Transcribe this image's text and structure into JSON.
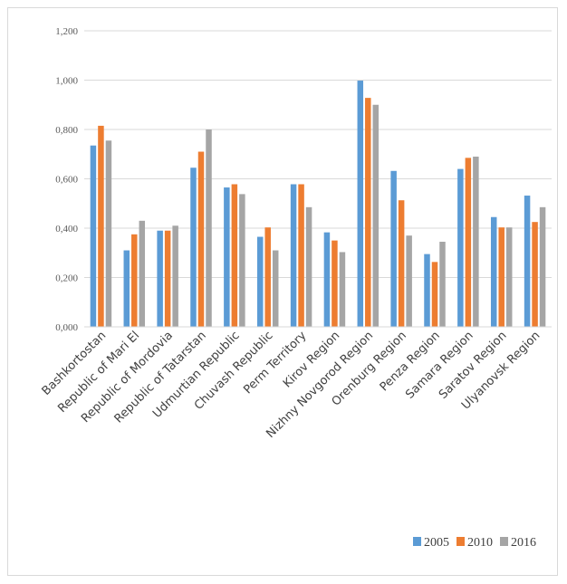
{
  "chart_data": {
    "type": "bar",
    "categories": [
      "Bashkortostan",
      "Republic of Mari El",
      "Republic of Mordovia",
      "Republic of Tatarstan",
      "Udmurtian Republic",
      "Chuvash Republic",
      "Perm Territory",
      "Kirov Region",
      "Nizhny Novgorod Region",
      "Orenburg Region",
      "Penza Region",
      "Samara Region",
      "Saratov Region",
      "Ulyanovsk Region"
    ],
    "series": [
      {
        "name": "2005",
        "color": "#5b9bd5",
        "values": [
          0.735,
          0.31,
          0.39,
          0.645,
          0.565,
          0.365,
          0.578,
          0.383,
          0.998,
          0.632,
          0.295,
          0.64,
          0.445,
          0.532
        ]
      },
      {
        "name": "2010",
        "color": "#ed7d31",
        "values": [
          0.815,
          0.375,
          0.39,
          0.71,
          0.578,
          0.403,
          0.578,
          0.35,
          0.928,
          0.513,
          0.263,
          0.685,
          0.403,
          0.425
        ]
      },
      {
        "name": "2016",
        "color": "#a5a5a5",
        "values": [
          0.755,
          0.43,
          0.41,
          0.8,
          0.538,
          0.31,
          0.485,
          0.303,
          0.9,
          0.37,
          0.345,
          0.69,
          0.403,
          0.485
        ]
      }
    ],
    "yticks": [
      "0,000",
      "0,200",
      "0,400",
      "0,600",
      "0,800",
      "1,000",
      "1,200"
    ],
    "ylim": [
      0,
      1.2
    ],
    "grid": true,
    "legend_position": "bottom-right",
    "title": "",
    "xlabel": "",
    "ylabel": ""
  }
}
